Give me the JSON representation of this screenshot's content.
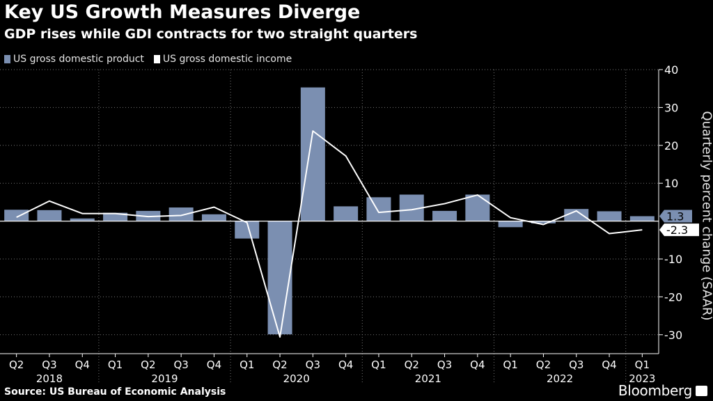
{
  "title": "Key US Growth Measures Diverge",
  "subtitle": "GDP rises while GDI contracts for two straight quarters",
  "source": "Source: US Bureau of Economic Analysis",
  "brand": "Bloomberg",
  "colors": {
    "gdp": "#7b8fb1",
    "gdi": "#ffffff",
    "background": "#000000",
    "axis": "#ffffff"
  },
  "chart_data": {
    "type": "bar",
    "title": "Key US Growth Measures Diverge",
    "subtitle": "GDP rises while GDI contracts for two straight quarters",
    "ylabel": "Quarterly percent change (SAAR)",
    "xlabel": "",
    "ylim": [
      -35,
      40
    ],
    "yticks": [
      40,
      30,
      20,
      10,
      -10,
      -20,
      -30
    ],
    "quarter_labels": [
      "Q2",
      "Q3",
      "Q4",
      "Q1",
      "Q2",
      "Q3",
      "Q4",
      "Q1",
      "Q2",
      "Q3",
      "Q4",
      "Q1",
      "Q2",
      "Q3",
      "Q4",
      "Q1",
      "Q2",
      "Q3",
      "Q4",
      "Q1"
    ],
    "year_labels": [
      {
        "label": "2018",
        "index": 1
      },
      {
        "label": "2019",
        "index": 4.5
      },
      {
        "label": "2020",
        "index": 8.5
      },
      {
        "label": "2021",
        "index": 12.5
      },
      {
        "label": "2022",
        "index": 16.5
      },
      {
        "label": "2023",
        "index": 19
      }
    ],
    "year_dividers": [
      2.5,
      6.5,
      10.5,
      14.5,
      18.5
    ],
    "series": [
      {
        "name": "US gross domestic product",
        "kind": "bar",
        "values": [
          3.0,
          2.9,
          0.7,
          2.2,
          2.7,
          3.6,
          1.8,
          -4.6,
          -29.9,
          35.3,
          3.9,
          6.3,
          7.0,
          2.7,
          7.0,
          -1.6,
          -0.6,
          3.2,
          2.6,
          1.3
        ],
        "end_label": "1.3"
      },
      {
        "name": "US gross domestic income",
        "kind": "line",
        "values": [
          1.0,
          5.3,
          2.0,
          2.0,
          1.2,
          1.5,
          3.7,
          -0.4,
          -30.6,
          23.8,
          17.2,
          2.3,
          3.0,
          4.6,
          6.9,
          0.9,
          -0.9,
          2.7,
          -3.3,
          -2.3
        ],
        "end_label": "-2.3"
      }
    ],
    "legend_position": "top-left"
  }
}
